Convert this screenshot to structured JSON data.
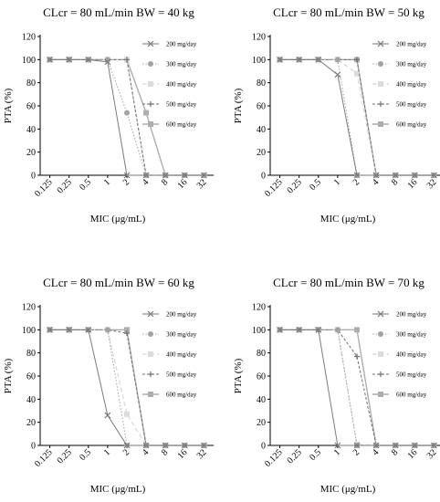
{
  "colors": {
    "axis": "#000000",
    "s200": "#7a7a7a",
    "s300": "#a3a3a3",
    "s400": "#dcdcdc",
    "s500": "#6e6e6e",
    "s600": "#aeaeae"
  },
  "chart_data": [
    {
      "type": "line",
      "title": "CLcr = 80 mL/min BW = 40 kg",
      "xlabel": "MIC (μg/mL)",
      "ylabel": "PTA (%)",
      "categories": [
        "0.125",
        "0.25",
        "0.5",
        "1",
        "2",
        "4",
        "8",
        "16",
        "32"
      ],
      "yticks": [
        "0",
        "20",
        "40",
        "60",
        "80",
        "100",
        "120"
      ],
      "ylim": [
        0,
        120
      ],
      "legend_position": "right",
      "series": [
        {
          "name": "200 mg/day",
          "values": [
            100,
            100,
            100,
            98,
            0,
            0,
            0,
            0,
            0
          ]
        },
        {
          "name": "300 mg/day",
          "values": [
            100,
            100,
            100,
            100,
            54,
            0,
            0,
            0,
            0
          ]
        },
        {
          "name": "400 mg/day",
          "values": [
            100,
            100,
            100,
            100,
            100,
            0,
            0,
            0,
            0
          ]
        },
        {
          "name": "500 mg/day",
          "values": [
            100,
            100,
            100,
            100,
            100,
            0,
            0,
            0,
            0
          ]
        },
        {
          "name": "600 mg/day",
          "values": [
            100,
            100,
            100,
            100,
            100,
            54,
            0,
            0,
            0
          ]
        }
      ]
    },
    {
      "type": "line",
      "title": "CLcr = 80 mL/min BW = 50 kg",
      "xlabel": "MIC (μg/mL)",
      "ylabel": "PTA (%)",
      "categories": [
        "0.125",
        "0.25",
        "0.5",
        "1",
        "2",
        "4",
        "8",
        "16",
        "32"
      ],
      "yticks": [
        "0",
        "20",
        "40",
        "60",
        "80",
        "100",
        "120"
      ],
      "ylim": [
        0,
        120
      ],
      "legend_position": "right",
      "series": [
        {
          "name": "200 mg/day",
          "values": [
            100,
            100,
            100,
            87,
            0,
            0,
            0,
            0,
            0
          ]
        },
        {
          "name": "300 mg/day",
          "values": [
            100,
            100,
            100,
            100,
            0,
            0,
            0,
            0,
            0
          ]
        },
        {
          "name": "400 mg/day",
          "values": [
            100,
            100,
            100,
            100,
            88,
            0,
            0,
            0,
            0
          ]
        },
        {
          "name": "500 mg/day",
          "values": [
            100,
            100,
            100,
            100,
            100,
            0,
            0,
            0,
            0
          ]
        },
        {
          "name": "600 mg/day",
          "values": [
            100,
            100,
            100,
            100,
            100,
            0,
            0,
            0,
            0
          ]
        }
      ]
    },
    {
      "type": "line",
      "title": "CLcr = 80 mL/min BW = 60 kg",
      "xlabel": "MIC (μg/mL)",
      "ylabel": "PTA (%)",
      "categories": [
        "0.125",
        "0.25",
        "0.5",
        "1",
        "2",
        "4",
        "8",
        "16",
        "32"
      ],
      "yticks": [
        "0",
        "20",
        "40",
        "60",
        "80",
        "100",
        "120"
      ],
      "ylim": [
        0,
        120
      ],
      "legend_position": "right",
      "series": [
        {
          "name": "200 mg/day",
          "values": [
            100,
            100,
            100,
            26,
            0,
            0,
            0,
            0,
            0
          ]
        },
        {
          "name": "300 mg/day",
          "values": [
            100,
            100,
            100,
            100,
            0,
            0,
            0,
            0,
            0
          ]
        },
        {
          "name": "400 mg/day",
          "values": [
            100,
            100,
            100,
            100,
            27,
            0,
            0,
            0,
            0
          ]
        },
        {
          "name": "500 mg/day",
          "values": [
            100,
            100,
            100,
            100,
            97,
            0,
            0,
            0,
            0
          ]
        },
        {
          "name": "600 mg/day",
          "values": [
            100,
            100,
            100,
            100,
            100,
            0,
            0,
            0,
            0
          ]
        }
      ]
    },
    {
      "type": "line",
      "title": "CLcr = 80 mL/min BW = 70 kg",
      "xlabel": "MIC (μg/mL)",
      "ylabel": "PTA (%)",
      "categories": [
        "0.125",
        "0.25",
        "0.5",
        "1",
        "2",
        "4",
        "8",
        "16",
        "32"
      ],
      "yticks": [
        "0",
        "20",
        "40",
        "60",
        "80",
        "100",
        "120"
      ],
      "ylim": [
        0,
        120
      ],
      "legend_position": "right",
      "series": [
        {
          "name": "200 mg/day",
          "values": [
            100,
            100,
            100,
            0,
            0,
            0,
            0,
            0,
            0
          ]
        },
        {
          "name": "300 mg/day",
          "values": [
            100,
            100,
            100,
            100,
            0,
            0,
            0,
            0,
            0
          ]
        },
        {
          "name": "400 mg/day",
          "values": [
            100,
            100,
            100,
            100,
            1,
            0,
            0,
            0,
            0
          ]
        },
        {
          "name": "500 mg/day",
          "values": [
            100,
            100,
            100,
            100,
            77,
            0,
            0,
            0,
            0
          ]
        },
        {
          "name": "600 mg/day",
          "values": [
            100,
            100,
            100,
            100,
            100,
            0,
            0,
            0,
            0
          ]
        }
      ]
    }
  ]
}
